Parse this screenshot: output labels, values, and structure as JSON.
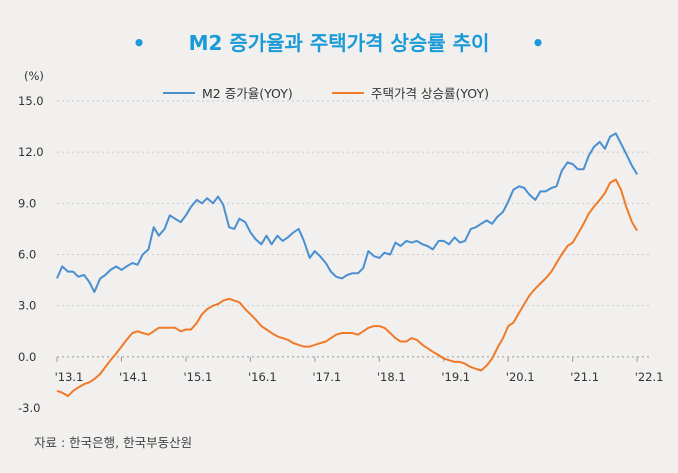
{
  "chart_data": {
    "type": "line",
    "title": "M2 증가율과 주택가격 상승률 추이",
    "title_bullet": "•",
    "y_unit_label": "(%)",
    "source": "자료 : 한국은행, 한국부동산원",
    "ylim": [
      -3.0,
      15.0
    ],
    "y_ticks": [
      "15.0",
      "12.0",
      "9.0",
      "6.0",
      "3.0",
      "0.0",
      "-3.0"
    ],
    "y_tick_values": [
      15,
      12,
      9,
      6,
      3,
      0,
      -3
    ],
    "x_ticks": [
      "'13.1",
      "'14.1",
      "'15.1",
      "'16.1",
      "'17.1",
      "'18.1",
      "'19.1",
      "'20.1",
      "'21.1",
      "'22.1"
    ],
    "x_tick_values": [
      2013.0,
      2014.0,
      2015.0,
      2016.0,
      2017.0,
      2018.0,
      2019.0,
      2020.0,
      2021.0,
      2022.0
    ],
    "xlim": [
      2013.0,
      2022.2
    ],
    "grid": "horizontal dashed",
    "legend_position": "top-center",
    "series": [
      {
        "name": "M2 증가율(YOY)",
        "color": "#4a8fd0",
        "x": [
          2013.0,
          2013.08,
          2013.17,
          2013.25,
          2013.33,
          2013.42,
          2013.5,
          2013.58,
          2013.67,
          2013.75,
          2013.83,
          2013.92,
          2014.0,
          2014.08,
          2014.17,
          2014.25,
          2014.33,
          2014.42,
          2014.5,
          2014.58,
          2014.67,
          2014.75,
          2014.83,
          2014.92,
          2015.0,
          2015.08,
          2015.17,
          2015.25,
          2015.33,
          2015.42,
          2015.5,
          2015.58,
          2015.67,
          2015.75,
          2015.83,
          2015.92,
          2016.0,
          2016.08,
          2016.17,
          2016.25,
          2016.33,
          2016.42,
          2016.5,
          2016.58,
          2016.67,
          2016.75,
          2016.83,
          2016.92,
          2017.0,
          2017.08,
          2017.17,
          2017.25,
          2017.33,
          2017.42,
          2017.5,
          2017.58,
          2017.67,
          2017.75,
          2017.83,
          2017.92,
          2018.0,
          2018.08,
          2018.17,
          2018.25,
          2018.33,
          2018.42,
          2018.5,
          2018.58,
          2018.67,
          2018.75,
          2018.83,
          2018.92,
          2019.0,
          2019.08,
          2019.17,
          2019.25,
          2019.33,
          2019.42,
          2019.5,
          2019.58,
          2019.67,
          2019.75,
          2019.83,
          2019.92,
          2020.0,
          2020.08,
          2020.17,
          2020.25,
          2020.33,
          2020.42,
          2020.5,
          2020.58,
          2020.67,
          2020.75,
          2020.83,
          2020.92,
          2021.0,
          2021.08,
          2021.17,
          2021.25,
          2021.33,
          2021.42,
          2021.5,
          2021.58,
          2021.67,
          2021.75,
          2021.83,
          2021.92,
          2022.0
        ],
        "values": [
          4.6,
          5.3,
          5.0,
          5.0,
          4.7,
          4.8,
          4.4,
          3.8,
          4.6,
          4.8,
          5.1,
          5.3,
          5.1,
          5.3,
          5.5,
          5.4,
          6.0,
          6.3,
          7.6,
          7.1,
          7.5,
          8.3,
          8.1,
          7.9,
          8.3,
          8.8,
          9.2,
          9.0,
          9.3,
          9.0,
          9.4,
          8.9,
          7.6,
          7.5,
          8.1,
          7.9,
          7.3,
          6.9,
          6.6,
          7.1,
          6.6,
          7.1,
          6.8,
          7.0,
          7.3,
          7.5,
          6.8,
          5.8,
          6.2,
          5.9,
          5.5,
          5.0,
          4.7,
          4.6,
          4.8,
          4.9,
          4.9,
          5.2,
          6.2,
          5.9,
          5.8,
          6.1,
          6.0,
          6.7,
          6.5,
          6.8,
          6.7,
          6.8,
          6.6,
          6.5,
          6.3,
          6.8,
          6.8,
          6.6,
          7.0,
          6.7,
          6.8,
          7.5,
          7.6,
          7.8,
          8.0,
          7.8,
          8.2,
          8.5,
          9.1,
          9.8,
          10.0,
          9.9,
          9.5,
          9.2,
          9.7,
          9.7,
          9.9,
          10.0,
          10.9,
          11.4,
          11.3,
          11.0,
          11.0,
          11.8,
          12.3,
          12.6,
          12.2,
          12.9,
          13.1,
          12.5,
          11.9,
          11.2,
          10.7
        ],
        "x_sampled_from_axis": true
      },
      {
        "name": "주택가격 상승률(YOY)",
        "color": "#f07a28",
        "x": [
          2013.0,
          2013.08,
          2013.17,
          2013.25,
          2013.33,
          2013.42,
          2013.5,
          2013.58,
          2013.67,
          2013.75,
          2013.83,
          2013.92,
          2014.0,
          2014.08,
          2014.17,
          2014.25,
          2014.33,
          2014.42,
          2014.5,
          2014.58,
          2014.67,
          2014.75,
          2014.83,
          2014.92,
          2015.0,
          2015.08,
          2015.17,
          2015.25,
          2015.33,
          2015.42,
          2015.5,
          2015.58,
          2015.67,
          2015.75,
          2015.83,
          2015.92,
          2016.0,
          2016.08,
          2016.17,
          2016.25,
          2016.33,
          2016.42,
          2016.5,
          2016.58,
          2016.67,
          2016.75,
          2016.83,
          2016.92,
          2017.0,
          2017.08,
          2017.17,
          2017.25,
          2017.33,
          2017.42,
          2017.5,
          2017.58,
          2017.67,
          2017.75,
          2017.83,
          2017.92,
          2018.0,
          2018.08,
          2018.17,
          2018.25,
          2018.33,
          2018.42,
          2018.5,
          2018.58,
          2018.67,
          2018.75,
          2018.83,
          2018.92,
          2019.0,
          2019.08,
          2019.17,
          2019.25,
          2019.33,
          2019.42,
          2019.5,
          2019.58,
          2019.67,
          2019.75,
          2019.83,
          2019.92,
          2020.0,
          2020.08,
          2020.17,
          2020.25,
          2020.33,
          2020.42,
          2020.5,
          2020.58,
          2020.67,
          2020.75,
          2020.83,
          2020.92,
          2021.0,
          2021.08,
          2021.17,
          2021.25,
          2021.33,
          2021.42,
          2021.5,
          2021.58,
          2021.67,
          2021.75,
          2021.83,
          2021.92,
          2022.0
        ],
        "values": [
          -2.0,
          -2.1,
          -2.3,
          -2.0,
          -1.8,
          -1.6,
          -1.5,
          -1.3,
          -1.0,
          -0.6,
          -0.2,
          0.2,
          0.6,
          1.0,
          1.4,
          1.5,
          1.4,
          1.3,
          1.5,
          1.7,
          1.7,
          1.7,
          1.7,
          1.5,
          1.6,
          1.6,
          2.0,
          2.5,
          2.8,
          3.0,
          3.1,
          3.3,
          3.4,
          3.3,
          3.2,
          2.8,
          2.5,
          2.2,
          1.8,
          1.6,
          1.4,
          1.2,
          1.1,
          1.0,
          0.8,
          0.7,
          0.6,
          0.6,
          0.7,
          0.8,
          0.9,
          1.1,
          1.3,
          1.4,
          1.4,
          1.4,
          1.3,
          1.5,
          1.7,
          1.8,
          1.8,
          1.7,
          1.4,
          1.1,
          0.9,
          0.9,
          1.1,
          1.0,
          0.7,
          0.5,
          0.3,
          0.1,
          -0.1,
          -0.2,
          -0.3,
          -0.3,
          -0.4,
          -0.6,
          -0.7,
          -0.8,
          -0.5,
          -0.1,
          0.5,
          1.1,
          1.8,
          2.0,
          2.6,
          3.1,
          3.6,
          4.0,
          4.3,
          4.6,
          5.0,
          5.5,
          6.0,
          6.5,
          6.7,
          7.2,
          7.8,
          8.4,
          8.8,
          9.2,
          9.6,
          10.2,
          10.4,
          9.8,
          8.8,
          7.9,
          7.4
        ],
        "x_sampled_from_axis": true
      }
    ]
  }
}
